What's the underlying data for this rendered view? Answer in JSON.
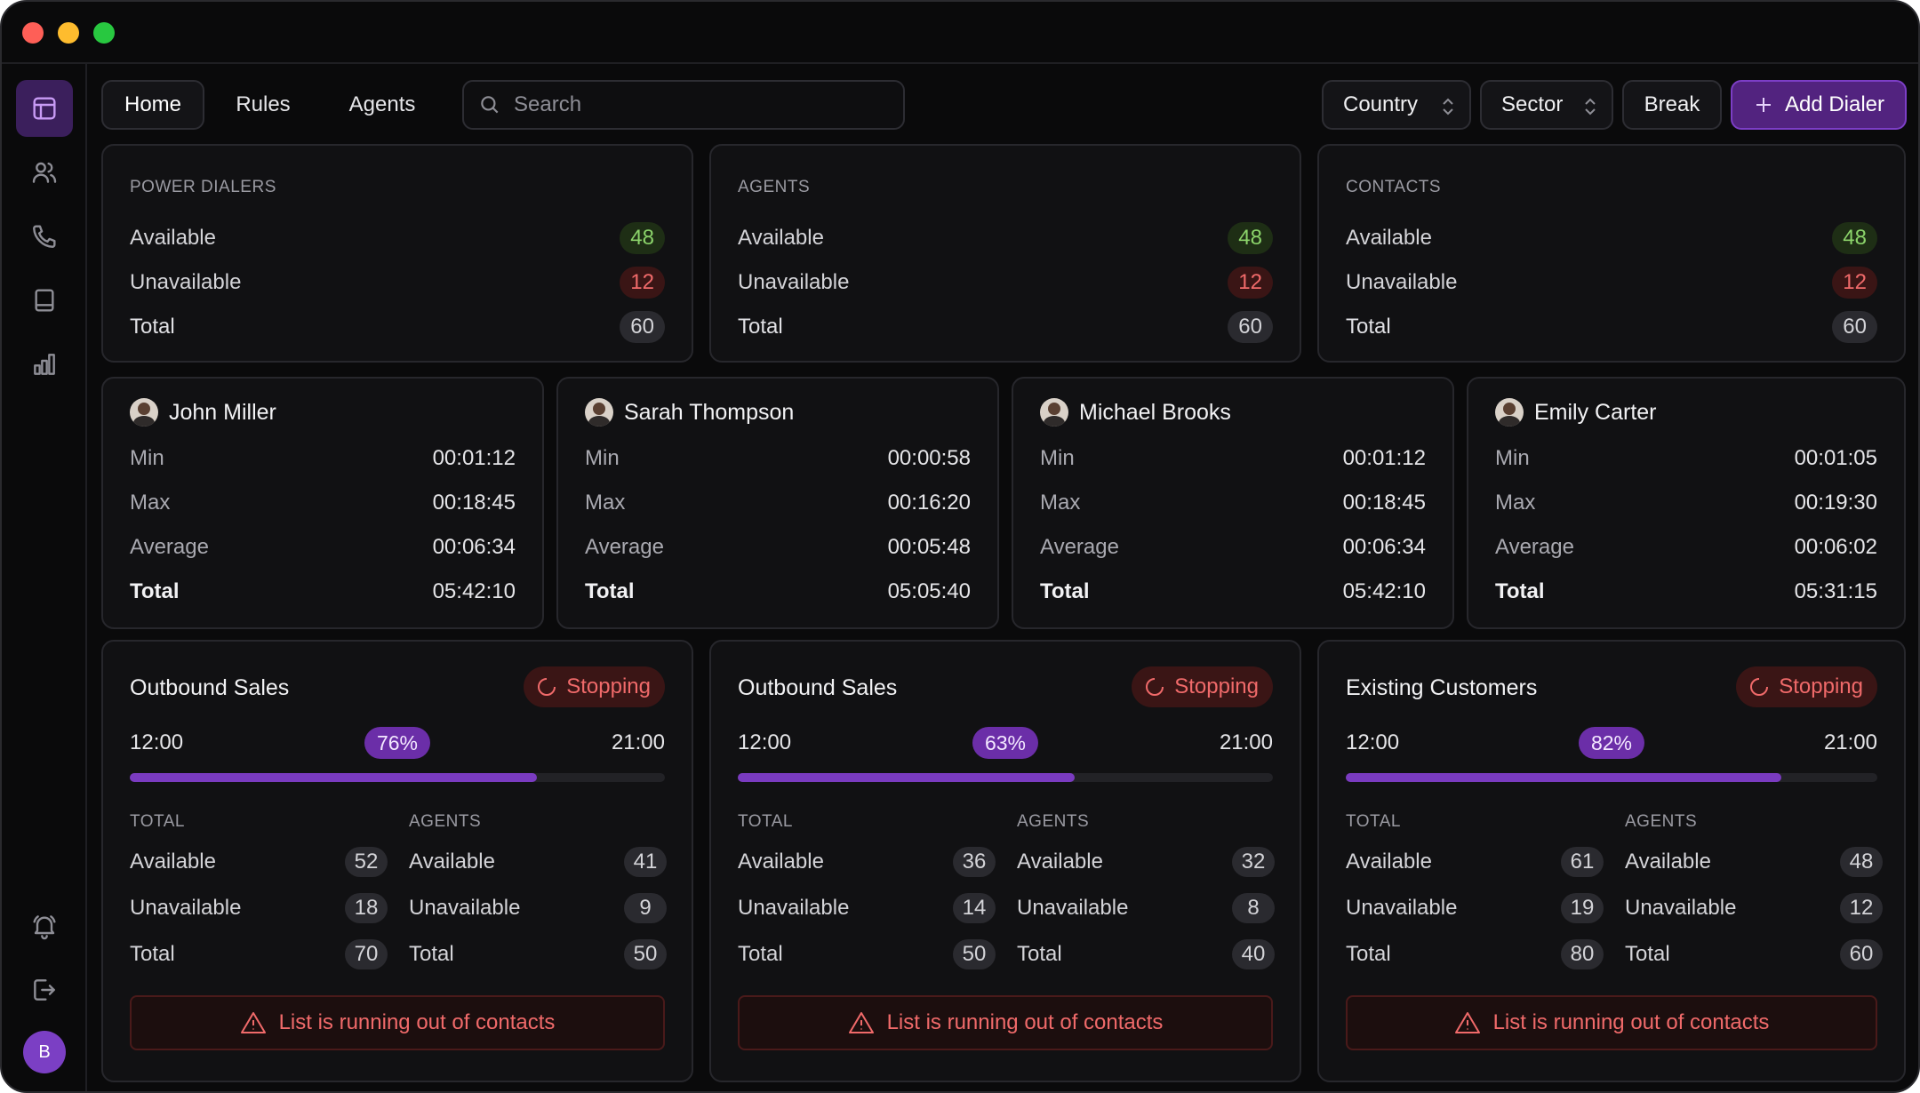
{
  "nav": {
    "tabs": [
      "Home",
      "Rules",
      "Agents"
    ],
    "search_placeholder": "Search"
  },
  "filters": {
    "country": "Country",
    "sector": "Sector",
    "break_label": "Break",
    "add_label": "Add Dialer"
  },
  "user": {
    "initial": "B"
  },
  "colors": {
    "accent": "#7a3bc0",
    "available": "#8bd36a",
    "unavailable": "#f06a6a",
    "background": "#0a0a0b"
  },
  "summary": [
    {
      "title": "POWER DIALERS",
      "rows": [
        {
          "label": "Available",
          "value": "48"
        },
        {
          "label": "Unavailable",
          "value": "12"
        },
        {
          "label": "Total",
          "value": "60"
        }
      ]
    },
    {
      "title": "AGENTS",
      "rows": [
        {
          "label": "Available",
          "value": "48"
        },
        {
          "label": "Unavailable",
          "value": "12"
        },
        {
          "label": "Total",
          "value": "60"
        }
      ]
    },
    {
      "title": "CONTACTS",
      "rows": [
        {
          "label": "Available",
          "value": "48"
        },
        {
          "label": "Unavailable",
          "value": "12"
        },
        {
          "label": "Total",
          "value": "60"
        }
      ]
    }
  ],
  "agents": [
    {
      "name": "John Miller",
      "rows": [
        {
          "label": "Min",
          "value": "00:01:12"
        },
        {
          "label": "Max",
          "value": "00:18:45"
        },
        {
          "label": "Average",
          "value": "00:06:34"
        },
        {
          "label": "Total",
          "value": "05:42:10"
        }
      ]
    },
    {
      "name": "Sarah Thompson",
      "rows": [
        {
          "label": "Min",
          "value": "00:00:58"
        },
        {
          "label": "Max",
          "value": "00:16:20"
        },
        {
          "label": "Average",
          "value": "00:05:48"
        },
        {
          "label": "Total",
          "value": "05:05:40"
        }
      ]
    },
    {
      "name": "Michael Brooks",
      "rows": [
        {
          "label": "Min",
          "value": "00:01:12"
        },
        {
          "label": "Max",
          "value": "00:18:45"
        },
        {
          "label": "Average",
          "value": "00:06:34"
        },
        {
          "label": "Total",
          "value": "05:42:10"
        }
      ]
    },
    {
      "name": "Emily Carter",
      "rows": [
        {
          "label": "Min",
          "value": "00:01:05"
        },
        {
          "label": "Max",
          "value": "00:19:30"
        },
        {
          "label": "Average",
          "value": "00:06:02"
        },
        {
          "label": "Total",
          "value": "05:31:15"
        }
      ]
    }
  ],
  "campaigns": [
    {
      "title": "Outbound Sales",
      "status": "Stopping",
      "start": "12:00",
      "end": "21:00",
      "progress": 76,
      "progress_label": "76%",
      "total_head": "TOTAL",
      "agents_head": "AGENTS",
      "total": [
        {
          "label": "Available",
          "value": "52"
        },
        {
          "label": "Unavailable",
          "value": "18"
        },
        {
          "label": "Total",
          "value": "70"
        }
      ],
      "agents": [
        {
          "label": "Available",
          "value": "41"
        },
        {
          "label": "Unavailable",
          "value": "9"
        },
        {
          "label": "Total",
          "value": "50"
        }
      ],
      "alert": "List is running out of contacts"
    },
    {
      "title": "Outbound Sales",
      "status": "Stopping",
      "start": "12:00",
      "end": "21:00",
      "progress": 63,
      "progress_label": "63%",
      "total_head": "TOTAL",
      "agents_head": "AGENTS",
      "total": [
        {
          "label": "Available",
          "value": "36"
        },
        {
          "label": "Unavailable",
          "value": "14"
        },
        {
          "label": "Total",
          "value": "50"
        }
      ],
      "agents": [
        {
          "label": "Available",
          "value": "32"
        },
        {
          "label": "Unavailable",
          "value": "8"
        },
        {
          "label": "Total",
          "value": "40"
        }
      ],
      "alert": "List is running out of contacts"
    },
    {
      "title": "Existing Customers",
      "status": "Stopping",
      "start": "12:00",
      "end": "21:00",
      "progress": 82,
      "progress_label": "82%",
      "total_head": "TOTAL",
      "agents_head": "AGENTS",
      "total": [
        {
          "label": "Available",
          "value": "61"
        },
        {
          "label": "Unavailable",
          "value": "19"
        },
        {
          "label": "Total",
          "value": "80"
        }
      ],
      "agents": [
        {
          "label": "Available",
          "value": "48"
        },
        {
          "label": "Unavailable",
          "value": "12"
        },
        {
          "label": "Total",
          "value": "60"
        }
      ],
      "alert": "List is running out of contacts"
    }
  ]
}
